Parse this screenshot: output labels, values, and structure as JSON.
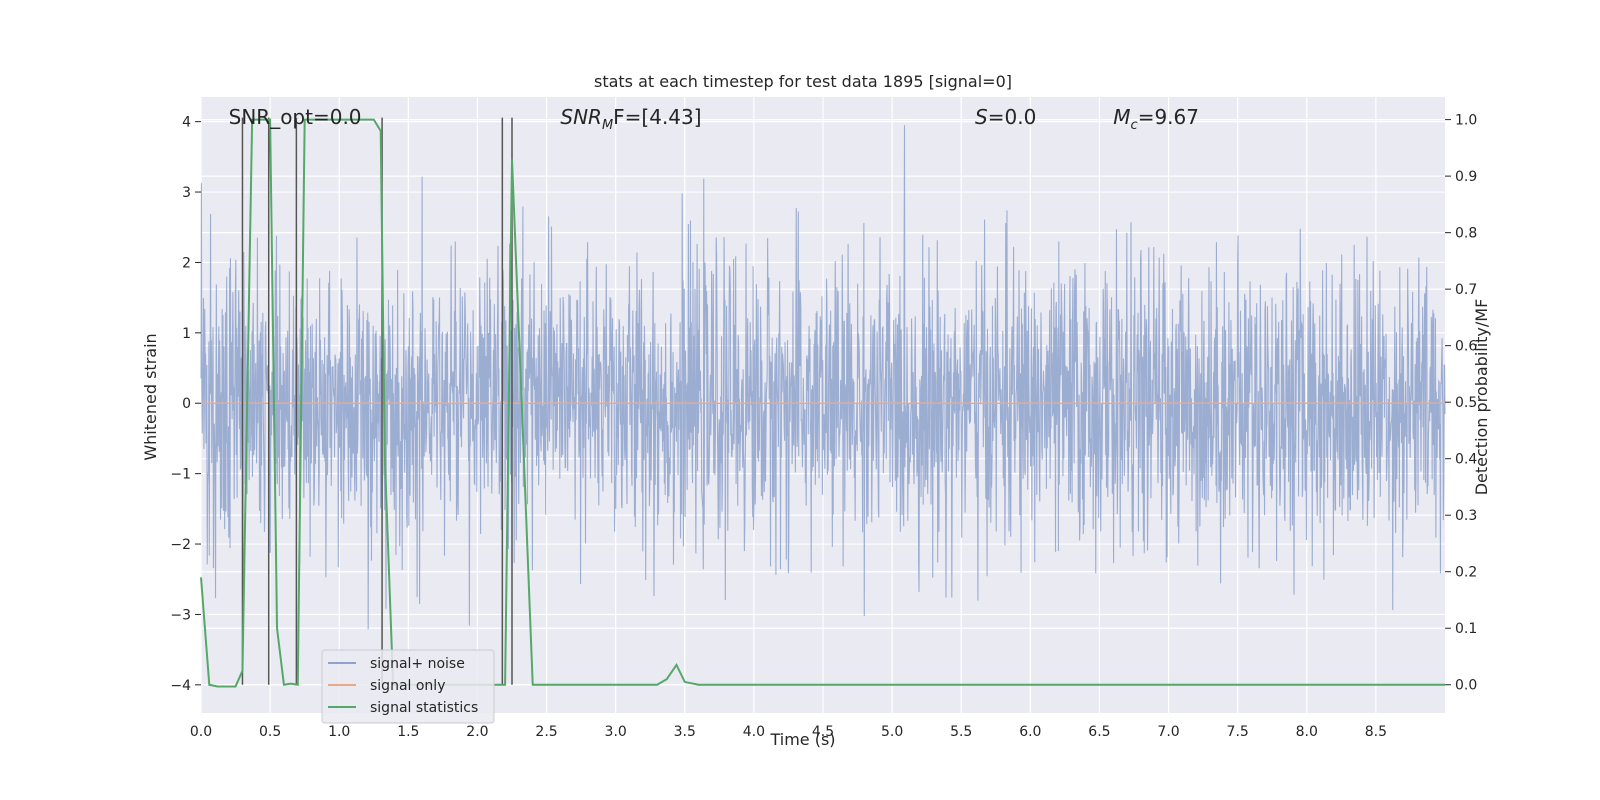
{
  "chart_data": {
    "type": "line",
    "title": "stats at each timestep for test data 1895 [signal=0]",
    "xlabel": "Time (s)",
    "ylabel_left": "Whitened strain",
    "ylabel_right": "Detection probability/MF",
    "xlim": [
      0.0,
      9.0
    ],
    "ylim_left": [
      -4.4,
      4.35
    ],
    "ylim_right": [
      -0.05,
      1.04
    ],
    "x_ticks": [
      "0.0",
      "0.5",
      "1.0",
      "1.5",
      "2.0",
      "2.5",
      "3.0",
      "3.5",
      "4.0",
      "4.5",
      "5.0",
      "5.5",
      "6.0",
      "6.5",
      "7.0",
      "7.5",
      "8.0",
      "8.5"
    ],
    "y_ticks_left": [
      "−4",
      "−3",
      "−2",
      "−1",
      "0",
      "1",
      "2",
      "3",
      "4"
    ],
    "y_ticks_right": [
      "0.0",
      "0.1",
      "0.2",
      "0.3",
      "0.4",
      "0.5",
      "0.6",
      "0.7",
      "0.8",
      "0.9",
      "1.0"
    ],
    "grid": true,
    "legend_position": "lower-left",
    "annotations": [
      {
        "text": "SNR_opt=0.0",
        "x": 0.2
      },
      {
        "text": "SNR",
        "sub": "M",
        "rest": "F=[4.43]",
        "x": 2.6
      },
      {
        "text": "S",
        "rest": "=0.0",
        "x": 5.6
      },
      {
        "text": "M",
        "sub": "c",
        "rest": "=9.67",
        "x": 6.6
      }
    ],
    "series": [
      {
        "name": "signal+ noise",
        "color": "#8ea2cc",
        "note": "whitened strain noise",
        "envelope_amplitude": 2.3
      },
      {
        "name": "signal only",
        "color": "#e8a98a",
        "values_constant": 0.0
      },
      {
        "name": "signal statistics",
        "color": "#55a868",
        "x": [
          0.0,
          0.06,
          0.12,
          0.25,
          0.3,
          0.37,
          0.43,
          0.5,
          0.55,
          0.6,
          0.65,
          0.7,
          0.75,
          1.25,
          1.3,
          1.33,
          1.39,
          1.9,
          2.2,
          2.25,
          2.32,
          2.4,
          3.3,
          3.37,
          3.44,
          3.5,
          3.6,
          9.0
        ],
        "y": [
          0.19,
          0.0,
          -0.003,
          -0.003,
          0.025,
          1.0,
          1.0,
          1.0,
          0.1,
          0.0,
          0.002,
          0.0,
          1.0,
          1.0,
          0.98,
          0.4,
          0.0,
          0.0,
          0.0,
          0.93,
          0.5,
          0.0,
          0.0,
          0.01,
          0.035,
          0.005,
          0.0,
          0.0
        ]
      },
      {
        "name": "",
        "color": "#555555",
        "type": "vlines",
        "x": [
          0.3,
          0.49,
          0.69,
          1.31,
          2.18,
          2.25
        ]
      }
    ]
  }
}
